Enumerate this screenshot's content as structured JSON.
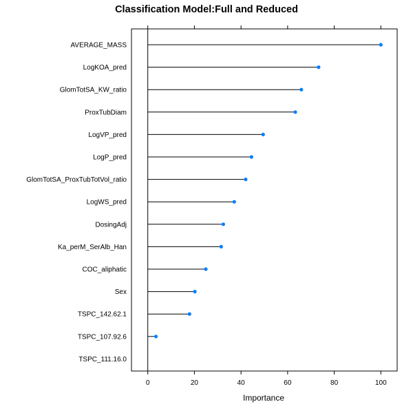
{
  "chart_data": {
    "type": "lollipop",
    "title": "Classification Model:Full and Reduced",
    "xlabel": "Importance",
    "ylabel": "",
    "xlim": [
      -7,
      107
    ],
    "xticks": [
      0,
      20,
      40,
      60,
      80,
      100
    ],
    "categories": [
      "AVERAGE_MASS",
      "LogKOA_pred",
      "GlomTotSA_KW_ratio",
      "ProxTubDiam",
      "LogVP_pred",
      "LogP_pred",
      "GlomTotSA_ProxTubTotVol_ratio",
      "LogWS_pred",
      "DosingAdj",
      "Ka_perM_SerAlb_Han",
      "COC_aliphatic",
      "Sex",
      "TSPC_142.62.1",
      "TSPC_107.92.6",
      "TSPC_111.16.0"
    ],
    "values": [
      100,
      73.3,
      65.9,
      63.3,
      49.5,
      44.5,
      42,
      37.1,
      32.4,
      31.5,
      24.9,
      20.2,
      17.9,
      3.5,
      0
    ],
    "point_color": "#0080ff",
    "line_color": "#000000"
  }
}
